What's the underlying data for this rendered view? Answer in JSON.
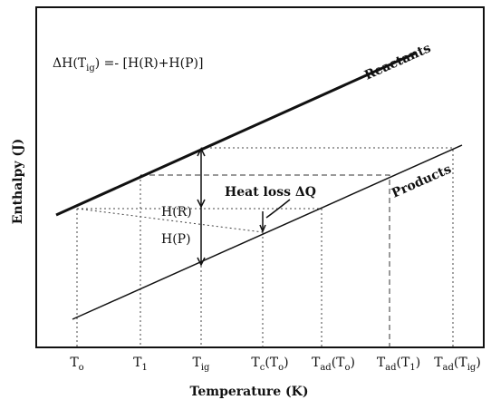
{
  "equation": {
    "lead": "ΔH(T",
    "sub": "ig",
    "rest": ") =- [H(R)+H(P)]"
  },
  "lines": {
    "reactants": "Reactants",
    "products": "Products"
  },
  "labels": {
    "hr": "H(R)",
    "hp": "H(P)",
    "heat_loss": "Heat loss ΔQ"
  },
  "axes": {
    "x_label": "Temperature (K)",
    "y_label": "Enthalpy (J)"
  },
  "x_ticks": [
    {
      "main": "T",
      "sub": "o",
      "rest": ""
    },
    {
      "main": "T",
      "sub": "1",
      "rest": ""
    },
    {
      "main": "T",
      "sub": "ig",
      "rest": ""
    },
    {
      "main": "T",
      "sub": "c",
      "rest": "(T",
      "sub2": "o",
      "end": ")"
    },
    {
      "main": "T",
      "sub": "ad",
      "rest": "(T",
      "sub2": "o",
      "end": ")"
    },
    {
      "main": "T",
      "sub": "ad",
      "rest": "(T",
      "sub2": "1",
      "end": ")"
    },
    {
      "main": "T",
      "sub": "ad",
      "rest": "(T",
      "sub2": "ig",
      "end": ")"
    }
  ]
}
